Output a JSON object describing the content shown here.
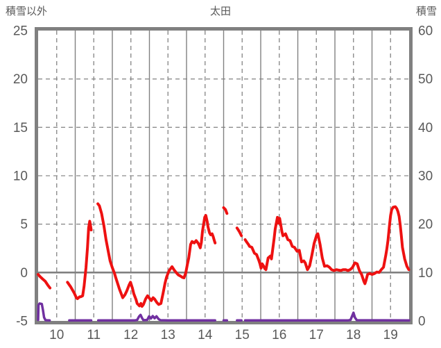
{
  "colors": {
    "text": "#595959",
    "grid_solid": "#808080",
    "grid_dashed": "#8c8c8c",
    "border": "#808080",
    "zero_line": "#808080",
    "red": "#ee1111",
    "purple": "#7030a0"
  },
  "chart_data": {
    "type": "line",
    "title": "太田",
    "left_axis": {
      "title": "積雪以外",
      "range": [
        -5,
        25
      ],
      "ticks": [
        25,
        20,
        15,
        10,
        5,
        0,
        -5
      ]
    },
    "right_axis": {
      "title": "積雪",
      "range": [
        0,
        60
      ],
      "ticks": [
        60,
        50,
        40,
        30,
        20,
        10,
        0
      ]
    },
    "x_axis": {
      "range": [
        9.5,
        19.5
      ],
      "ticks": [
        10,
        11,
        12,
        13,
        14,
        15,
        16,
        17,
        18,
        19
      ]
    },
    "grid": {
      "h_dashed_at": [
        5,
        10,
        15,
        20
      ],
      "v_solid_at_day_boundaries": true,
      "v_dashed_at_day_centers": true,
      "zero_line_at": 0,
      "legend": "none"
    },
    "series": [
      {
        "name": "purple-line",
        "axis": "right",
        "color": "#7030a0",
        "width": 3.5,
        "segments": [
          [
            [
              9.5,
              0.2
            ],
            [
              9.51,
              3.3
            ],
            [
              9.54,
              3.6
            ],
            [
              9.6,
              3.5
            ],
            [
              9.63,
              2.2
            ],
            [
              9.66,
              0.7
            ],
            [
              9.7,
              0.15
            ],
            [
              9.81,
              0.1
            ]
          ],
          [
            [
              10.34,
              0.1
            ],
            [
              10.93,
              0.1
            ]
          ],
          [
            [
              11.12,
              0.1
            ],
            [
              12.1,
              0.1
            ],
            [
              12.17,
              0.2
            ],
            [
              12.22,
              0.9
            ],
            [
              12.26,
              1.25
            ],
            [
              12.3,
              0.6
            ],
            [
              12.34,
              0.15
            ],
            [
              12.44,
              0.2
            ],
            [
              12.49,
              0.95
            ],
            [
              12.54,
              0.5
            ],
            [
              12.59,
              1.0
            ],
            [
              12.64,
              0.55
            ],
            [
              12.69,
              0.95
            ],
            [
              12.75,
              0.35
            ],
            [
              12.8,
              0.15
            ],
            [
              13.0,
              0.1
            ],
            [
              14.27,
              0.1
            ]
          ],
          [
            [
              14.5,
              0.1
            ],
            [
              14.59,
              0.1
            ]
          ],
          [
            [
              14.86,
              0.1
            ],
            [
              14.98,
              0.1
            ]
          ],
          [
            [
              15.08,
              0.1
            ],
            [
              17.85,
              0.1
            ],
            [
              17.92,
              0.2
            ],
            [
              17.97,
              1.1
            ],
            [
              18.0,
              1.7
            ],
            [
              18.04,
              0.7
            ],
            [
              18.09,
              0.15
            ],
            [
              19.5,
              0.1
            ]
          ]
        ]
      },
      {
        "name": "red-line",
        "axis": "left",
        "color": "#ee1111",
        "width": 4,
        "segments": [
          [
            [
              9.5,
              -0.2
            ],
            [
              9.56,
              -0.45
            ],
            [
              9.63,
              -0.7
            ],
            [
              9.69,
              -0.9
            ],
            [
              9.76,
              -1.3
            ],
            [
              9.82,
              -1.6
            ]
          ],
          [
            [
              10.29,
              -1.0
            ],
            [
              10.38,
              -1.5
            ],
            [
              10.47,
              -2.1
            ],
            [
              10.53,
              -2.6
            ],
            [
              10.56,
              -2.7
            ],
            [
              10.62,
              -2.5
            ],
            [
              10.65,
              -2.5
            ],
            [
              10.7,
              -2.4
            ],
            [
              10.74,
              -1.4
            ],
            [
              10.79,
              0.5
            ],
            [
              10.83,
              2.6
            ],
            [
              10.86,
              4.6
            ],
            [
              10.89,
              5.3
            ],
            [
              10.91,
              4.9
            ],
            [
              10.93,
              4.4
            ]
          ],
          [
            [
              11.11,
              7.1
            ],
            [
              11.15,
              6.9
            ],
            [
              11.21,
              6.1
            ],
            [
              11.25,
              5.3
            ],
            [
              11.27,
              4.9
            ],
            [
              11.33,
              3.4
            ],
            [
              11.39,
              2.2
            ],
            [
              11.44,
              1.2
            ],
            [
              11.5,
              0.5
            ],
            [
              11.56,
              -0.1
            ],
            [
              11.59,
              -0.5
            ],
            [
              11.69,
              -1.7
            ],
            [
              11.78,
              -2.6
            ],
            [
              11.84,
              -2.3
            ],
            [
              11.89,
              -1.9
            ],
            [
              11.95,
              -1.3
            ],
            [
              11.99,
              -1.0
            ],
            [
              12.04,
              -1.6
            ],
            [
              12.08,
              -2.2
            ],
            [
              12.14,
              -2.8
            ],
            [
              12.17,
              -3.2
            ],
            [
              12.23,
              -3.45
            ],
            [
              12.27,
              -3.2
            ],
            [
              12.3,
              -3.5
            ],
            [
              12.34,
              -3.3
            ],
            [
              12.4,
              -2.7
            ],
            [
              12.45,
              -2.4
            ],
            [
              12.51,
              -2.7
            ],
            [
              12.55,
              -2.9
            ],
            [
              12.6,
              -2.6
            ],
            [
              12.64,
              -2.75
            ],
            [
              12.7,
              -3.1
            ],
            [
              12.75,
              -3.3
            ],
            [
              12.81,
              -3.2
            ],
            [
              12.87,
              -2.1
            ],
            [
              12.92,
              -1.1
            ],
            [
              12.96,
              -0.5
            ],
            [
              13.02,
              0.1
            ],
            [
              13.05,
              0.3
            ],
            [
              13.11,
              0.6
            ],
            [
              13.17,
              0.25
            ],
            [
              13.22,
              0.0
            ],
            [
              13.28,
              -0.25
            ],
            [
              13.33,
              -0.35
            ],
            [
              13.39,
              -0.5
            ],
            [
              13.43,
              -0.55
            ],
            [
              13.48,
              -0.05
            ],
            [
              13.52,
              0.8
            ],
            [
              13.56,
              1.5
            ],
            [
              13.61,
              2.9
            ],
            [
              13.65,
              3.2
            ],
            [
              13.71,
              3.05
            ],
            [
              13.76,
              3.3
            ],
            [
              13.82,
              3.0
            ],
            [
              13.87,
              2.55
            ],
            [
              13.9,
              3.1
            ],
            [
              13.93,
              4.25
            ],
            [
              13.99,
              5.7
            ],
            [
              14.02,
              5.9
            ],
            [
              14.06,
              5.2
            ],
            [
              14.08,
              4.7
            ],
            [
              14.12,
              4.1
            ],
            [
              14.15,
              3.9
            ],
            [
              14.19,
              4.0
            ],
            [
              14.22,
              3.7
            ],
            [
              14.25,
              3.3
            ],
            [
              14.27,
              3.05
            ]
          ],
          [
            [
              14.5,
              6.7
            ],
            [
              14.55,
              6.5
            ],
            [
              14.59,
              6.1
            ]
          ],
          [
            [
              14.86,
              4.6
            ],
            [
              14.92,
              4.25
            ],
            [
              14.98,
              3.8
            ]
          ],
          [
            [
              15.08,
              3.4
            ],
            [
              15.13,
              3.1
            ],
            [
              15.17,
              2.9
            ],
            [
              15.2,
              2.7
            ],
            [
              15.26,
              2.6
            ],
            [
              15.33,
              2.0
            ],
            [
              15.39,
              1.85
            ],
            [
              15.45,
              1.25
            ],
            [
              15.48,
              0.9
            ],
            [
              15.51,
              0.45
            ],
            [
              15.54,
              0.9
            ],
            [
              15.58,
              0.65
            ],
            [
              15.61,
              0.4
            ],
            [
              15.64,
              0.3
            ],
            [
              15.7,
              1.5
            ],
            [
              15.76,
              1.7
            ],
            [
              15.79,
              1.4
            ],
            [
              15.86,
              3.5
            ],
            [
              15.89,
              4.5
            ],
            [
              15.95,
              5.7
            ],
            [
              15.98,
              5.1
            ],
            [
              16.01,
              5.6
            ],
            [
              16.07,
              4.25
            ],
            [
              16.1,
              3.8
            ],
            [
              16.17,
              4.0
            ],
            [
              16.23,
              3.4
            ],
            [
              16.29,
              3.3
            ],
            [
              16.35,
              2.7
            ],
            [
              16.41,
              2.6
            ],
            [
              16.48,
              2.2
            ],
            [
              16.54,
              2.3
            ],
            [
              16.6,
              1.1
            ],
            [
              16.66,
              1.2
            ],
            [
              16.7,
              1.0
            ],
            [
              16.76,
              0.3
            ],
            [
              16.82,
              0.7
            ],
            [
              16.88,
              1.8
            ],
            [
              16.94,
              3.0
            ],
            [
              17.01,
              3.9
            ],
            [
              17.04,
              4.0
            ],
            [
              17.1,
              2.9
            ],
            [
              17.16,
              1.5
            ],
            [
              17.22,
              0.65
            ],
            [
              17.29,
              0.7
            ],
            [
              17.35,
              0.55
            ],
            [
              17.41,
              0.3
            ],
            [
              17.48,
              0.2
            ],
            [
              17.54,
              0.3
            ],
            [
              17.6,
              0.25
            ],
            [
              17.66,
              0.2
            ],
            [
              17.72,
              0.3
            ],
            [
              17.79,
              0.3
            ],
            [
              17.85,
              0.2
            ],
            [
              17.91,
              0.3
            ],
            [
              17.97,
              0.5
            ],
            [
              18.04,
              1.0
            ],
            [
              18.1,
              0.9
            ],
            [
              18.16,
              0.2
            ],
            [
              18.22,
              -0.2
            ],
            [
              18.28,
              -0.9
            ],
            [
              18.31,
              -1.15
            ],
            [
              18.34,
              -0.8
            ],
            [
              18.38,
              -0.2
            ],
            [
              18.44,
              -0.1
            ],
            [
              18.5,
              -0.2
            ],
            [
              18.57,
              -0.1
            ],
            [
              18.63,
              0.05
            ],
            [
              18.69,
              0.0
            ],
            [
              18.75,
              0.3
            ],
            [
              18.81,
              0.55
            ],
            [
              18.87,
              1.75
            ],
            [
              18.9,
              2.45
            ],
            [
              18.93,
              3.3
            ],
            [
              18.97,
              4.8
            ],
            [
              19.0,
              5.9
            ],
            [
              19.03,
              6.5
            ],
            [
              19.07,
              6.75
            ],
            [
              19.13,
              6.8
            ],
            [
              19.17,
              6.6
            ],
            [
              19.2,
              6.3
            ],
            [
              19.23,
              5.8
            ],
            [
              19.26,
              4.9
            ],
            [
              19.29,
              3.8
            ],
            [
              19.32,
              2.6
            ],
            [
              19.38,
              1.4
            ],
            [
              19.44,
              0.65
            ],
            [
              19.49,
              0.3
            ]
          ]
        ]
      }
    ]
  }
}
